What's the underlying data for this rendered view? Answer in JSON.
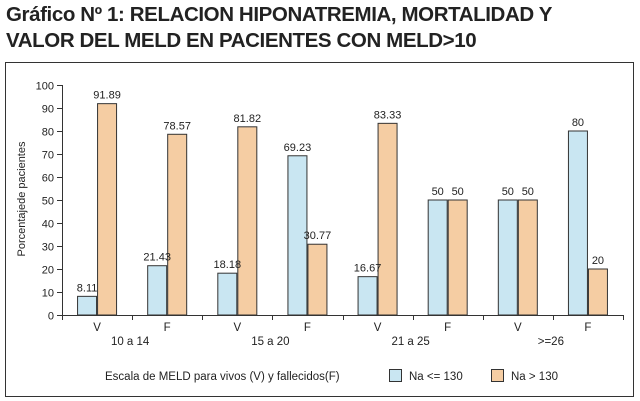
{
  "chart_data": {
    "type": "bar",
    "title_lines": [
      "Gráfico Nº 1: RELACION HIPONATREMIA, MORTALIDAD Y",
      "VALOR DEL MELD EN PACIENTES CON MELD>10"
    ],
    "xlabel": "Escala de MELD para vivos (V) y fallecidos(F)",
    "ylabel": "Porcentajede pacientes",
    "ylim": [
      0,
      100
    ],
    "yticks": [
      0,
      10,
      20,
      30,
      40,
      50,
      60,
      70,
      80,
      90,
      100
    ],
    "grid": false,
    "legend_position": "bottom-right",
    "categories": [
      "V",
      "F",
      "V",
      "F",
      "V",
      "F",
      "V",
      "F"
    ],
    "groups": [
      "10 a 14",
      "15 a 20",
      "21 a 25",
      ">=26"
    ],
    "series": [
      {
        "name": "Na <= 130",
        "color": "#c9e6f2",
        "values": [
          8.11,
          21.43,
          18.18,
          69.23,
          16.67,
          50,
          50,
          80
        ],
        "labels": [
          "8.11",
          "21.43",
          "18.18",
          "69.23",
          "16.67",
          "50",
          "50",
          "80"
        ]
      },
      {
        "name": "Na > 130",
        "color": "#f5cda3",
        "values": [
          91.89,
          78.57,
          81.82,
          30.77,
          83.33,
          50,
          50,
          20
        ],
        "labels": [
          "91.89",
          "78.57",
          "81.82",
          "30.77",
          "83.33",
          "50",
          "50",
          "20"
        ]
      }
    ],
    "colors": {
      "border": "#333333",
      "bar_stroke": "#333333",
      "text": "#222222"
    }
  }
}
